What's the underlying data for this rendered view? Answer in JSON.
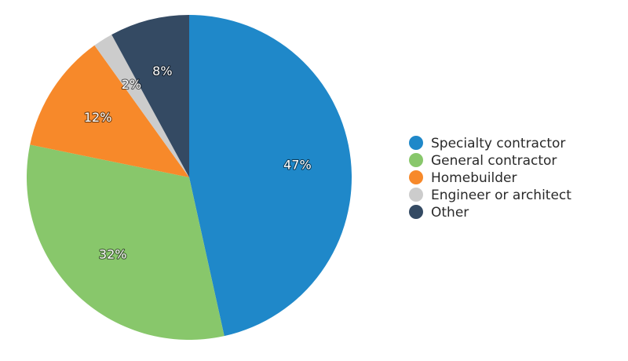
{
  "chart_data": {
    "type": "pie",
    "title": "",
    "start_angle_deg": 0,
    "direction": "clockwise",
    "legend_position": "right",
    "slices": [
      {
        "label": "Specialty contractor",
        "value": 47,
        "display": "47%",
        "color": "#1f88c9"
      },
      {
        "label": "General contractor",
        "value": 32,
        "display": "32%",
        "color": "#88c76b"
      },
      {
        "label": "Homebuilder",
        "value": 12,
        "display": "12%",
        "color": "#f7892a"
      },
      {
        "label": "Engineer or architect",
        "value": 2,
        "display": "2%",
        "color": "#cccccc"
      },
      {
        "label": "Other",
        "value": 8,
        "display": "8%",
        "color": "#344a63"
      }
    ]
  }
}
